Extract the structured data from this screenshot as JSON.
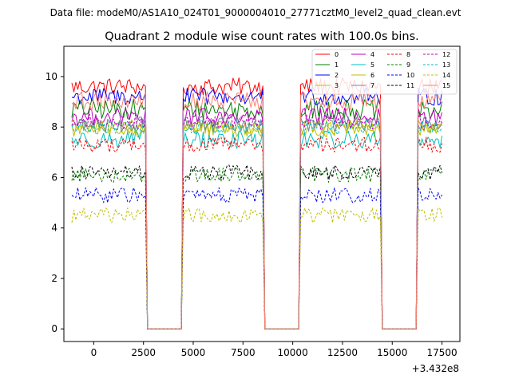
{
  "figure": {
    "suptitle": "Data file: modeM0/AS1A10_024T01_9000004010_27771cztM0_level2_quad_clean.evt"
  },
  "chart_data": {
    "type": "line",
    "title": "Quadrant 2 module wise count rates with 100.0s bins.",
    "xlabel": "",
    "ylabel": "",
    "x_offset_label": "+3.432e8",
    "xlim": [
      -1500,
      18400
    ],
    "ylim": [
      -0.5,
      11.2
    ],
    "x_ticks": [
      0,
      2500,
      5000,
      7500,
      10000,
      12500,
      15000,
      17500
    ],
    "x_tick_labels": [
      "0",
      "2500",
      "5000",
      "7500",
      "10000",
      "12500",
      "15000",
      "17500"
    ],
    "y_ticks": [
      0,
      2,
      4,
      6,
      8,
      10
    ],
    "y_tick_labels": [
      "0",
      "2",
      "4",
      "6",
      "8",
      "10"
    ],
    "bin_width": 100,
    "x_start": -1100,
    "x_end": 17500,
    "segments": [
      {
        "start": -1100,
        "end": 2600
      },
      {
        "start": 4500,
        "end": 8500
      },
      {
        "start": 10400,
        "end": 14400
      },
      {
        "start": 16300,
        "end": 17500
      }
    ],
    "gap_value": 0,
    "legend_position": "upper right",
    "series": [
      {
        "name": "0",
        "level": 9.6,
        "noise": 0.35,
        "color": "#ff0000",
        "dash": "solid"
      },
      {
        "name": "1",
        "level": 8.7,
        "noise": 0.4,
        "color": "#008000",
        "dash": "solid"
      },
      {
        "name": "2",
        "level": 9.2,
        "noise": 0.35,
        "color": "#0000ff",
        "dash": "solid"
      },
      {
        "name": "3",
        "level": 7.9,
        "noise": 0.3,
        "color": "#bfbf00",
        "dash": "solid"
      },
      {
        "name": "4",
        "level": 8.4,
        "noise": 0.35,
        "color": "#bf00bf",
        "dash": "solid"
      },
      {
        "name": "5",
        "level": 7.5,
        "noise": 0.35,
        "color": "#00bfbf",
        "dash": "solid"
      },
      {
        "name": "6",
        "level": 8.0,
        "noise": 0.3,
        "color": "#bfbf00",
        "dash": "solid"
      },
      {
        "name": "7",
        "level": 8.1,
        "noise": 0.3,
        "color": "#778899",
        "dash": "solid"
      },
      {
        "name": "8",
        "level": 7.3,
        "noise": 0.3,
        "color": "#ff0000",
        "dash": "dashed"
      },
      {
        "name": "9",
        "level": 6.1,
        "noise": 0.3,
        "color": "#008000",
        "dash": "dashed"
      },
      {
        "name": "10",
        "level": 5.3,
        "noise": 0.3,
        "color": "#0000ff",
        "dash": "dashed"
      },
      {
        "name": "11",
        "level": 6.2,
        "noise": 0.3,
        "color": "#000000",
        "dash": "dashed"
      },
      {
        "name": "12",
        "level": 8.2,
        "noise": 0.3,
        "color": "#bf00bf",
        "dash": "dashed"
      },
      {
        "name": "13",
        "level": 8.0,
        "noise": 0.3,
        "color": "#00bfbf",
        "dash": "dashed"
      },
      {
        "name": "14",
        "level": 4.5,
        "noise": 0.3,
        "color": "#bfbf00",
        "dash": "dashed"
      },
      {
        "name": "15",
        "level": 9.0,
        "noise": 0.4,
        "color": "#fa8072",
        "dash": "solid"
      }
    ]
  }
}
